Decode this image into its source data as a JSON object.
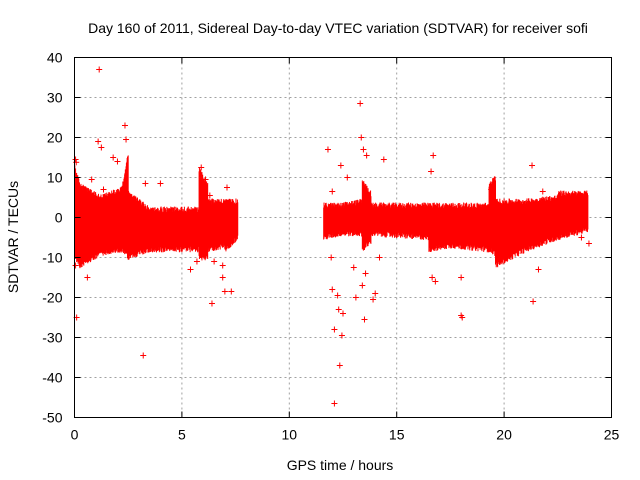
{
  "chart_data": {
    "type": "scatter",
    "title": "Day 160 of 2011, Sidereal Day-to-day VTEC variation (SDTVAR) for receiver sofi",
    "xlabel": "GPS time / hours",
    "ylabel": "SDTVAR / TECUs",
    "xlim": [
      0,
      25
    ],
    "ylim": [
      -50,
      40
    ],
    "xticks": [
      0,
      5,
      10,
      15,
      20,
      25
    ],
    "yticks": [
      -50,
      -40,
      -30,
      -20,
      -10,
      0,
      10,
      20,
      30,
      40
    ],
    "grid": true,
    "marker": "+",
    "color": "#ff0000",
    "bands": [
      {
        "x": [
          0.0,
          0.25
        ],
        "low": [
          -10,
          -12
        ],
        "high": [
          13,
          8
        ]
      },
      {
        "x": [
          0.25,
          1.2
        ],
        "low": [
          -12,
          -9
        ],
        "high": [
          8,
          5
        ]
      },
      {
        "x": [
          1.2,
          2.2
        ],
        "low": [
          -9,
          -8
        ],
        "high": [
          5,
          7
        ]
      },
      {
        "x": [
          2.2,
          2.5
        ],
        "low": [
          -8,
          -10
        ],
        "high": [
          7,
          16
        ]
      },
      {
        "x": [
          2.5,
          3.5
        ],
        "low": [
          -10,
          -8
        ],
        "high": [
          6,
          2
        ]
      },
      {
        "x": [
          3.5,
          5.8
        ],
        "low": [
          -8,
          -8
        ],
        "high": [
          2,
          2
        ]
      },
      {
        "x": [
          5.8,
          6.2
        ],
        "low": [
          -10,
          -10
        ],
        "high": [
          12,
          8
        ]
      },
      {
        "x": [
          6.2,
          7.0
        ],
        "low": [
          -8,
          -7
        ],
        "high": [
          4,
          4
        ]
      },
      {
        "x": [
          7.0,
          7.6
        ],
        "low": [
          -8,
          -5
        ],
        "high": [
          4,
          4
        ]
      },
      {
        "x": [
          11.6,
          12.4
        ],
        "low": [
          -5,
          -4
        ],
        "high": [
          3,
          3
        ]
      },
      {
        "x": [
          12.4,
          13.4
        ],
        "low": [
          -4,
          -4
        ],
        "high": [
          3,
          4
        ]
      },
      {
        "x": [
          13.4,
          13.8
        ],
        "low": [
          -8,
          -6
        ],
        "high": [
          9,
          6
        ]
      },
      {
        "x": [
          13.8,
          16.5
        ],
        "low": [
          -4,
          -5
        ],
        "high": [
          3,
          3
        ]
      },
      {
        "x": [
          16.5,
          17.5
        ],
        "low": [
          -8,
          -7
        ],
        "high": [
          3,
          3
        ]
      },
      {
        "x": [
          17.5,
          19.3
        ],
        "low": [
          -7,
          -8
        ],
        "high": [
          3,
          3
        ]
      },
      {
        "x": [
          19.3,
          19.6
        ],
        "low": [
          -8,
          -9
        ],
        "high": [
          8,
          10
        ]
      },
      {
        "x": [
          19.6,
          21.0
        ],
        "low": [
          -12,
          -8
        ],
        "high": [
          4,
          4
        ]
      },
      {
        "x": [
          21.0,
          22.5
        ],
        "low": [
          -8,
          -5
        ],
        "high": [
          4,
          5
        ]
      },
      {
        "x": [
          22.5,
          23.9
        ],
        "low": [
          -5,
          -3
        ],
        "high": [
          6,
          6
        ]
      }
    ],
    "outliers": [
      [
        0.05,
        14.5
      ],
      [
        0.08,
        13.8
      ],
      [
        0.1,
        -25
      ],
      [
        0.05,
        -12
      ],
      [
        0.6,
        -15
      ],
      [
        0.8,
        9.5
      ],
      [
        0.9,
        5
      ],
      [
        1.1,
        19
      ],
      [
        1.15,
        37
      ],
      [
        1.25,
        17.5
      ],
      [
        1.35,
        7
      ],
      [
        1.8,
        15
      ],
      [
        2.0,
        14
      ],
      [
        2.35,
        23
      ],
      [
        2.4,
        19.5
      ],
      [
        3.2,
        -34.5
      ],
      [
        3.3,
        8.5
      ],
      [
        4.0,
        8.5
      ],
      [
        5.4,
        -13
      ],
      [
        5.7,
        -11
      ],
      [
        5.9,
        12.5
      ],
      [
        6.1,
        9.5
      ],
      [
        6.4,
        -21.5
      ],
      [
        6.5,
        -11
      ],
      [
        6.9,
        -12
      ],
      [
        7.0,
        -18.5
      ],
      [
        7.3,
        -18.5
      ],
      [
        6.9,
        -15
      ],
      [
        7.1,
        7.5
      ],
      [
        6.3,
        5.5
      ],
      [
        11.8,
        17
      ],
      [
        11.8,
        -3
      ],
      [
        11.95,
        -10
      ],
      [
        12.0,
        -18
      ],
      [
        12.1,
        -28
      ],
      [
        12.1,
        -46.5
      ],
      [
        12.25,
        -19.5
      ],
      [
        12.3,
        -23
      ],
      [
        12.35,
        -37
      ],
      [
        12.45,
        -29.5
      ],
      [
        12.5,
        -24
      ],
      [
        12.4,
        13
      ],
      [
        12.0,
        6.5
      ],
      [
        12.7,
        10
      ],
      [
        13.0,
        -12.5
      ],
      [
        13.1,
        -20
      ],
      [
        13.3,
        28.5
      ],
      [
        13.35,
        20
      ],
      [
        13.45,
        17
      ],
      [
        13.4,
        -17
      ],
      [
        13.5,
        -25.5
      ],
      [
        13.55,
        -14
      ],
      [
        13.6,
        15.5
      ],
      [
        13.9,
        -20.5
      ],
      [
        14.0,
        -19
      ],
      [
        14.2,
        -10
      ],
      [
        14.4,
        14.5
      ],
      [
        16.6,
        11.5
      ],
      [
        16.7,
        15.5
      ],
      [
        16.65,
        -15
      ],
      [
        16.8,
        -16
      ],
      [
        18.0,
        -24.5
      ],
      [
        18.05,
        -25
      ],
      [
        18.0,
        -15
      ],
      [
        19.4,
        7
      ],
      [
        21.3,
        13
      ],
      [
        21.35,
        -21
      ],
      [
        21.6,
        -13
      ],
      [
        21.8,
        6.5
      ],
      [
        23.6,
        -5
      ],
      [
        23.95,
        -6.5
      ]
    ]
  }
}
